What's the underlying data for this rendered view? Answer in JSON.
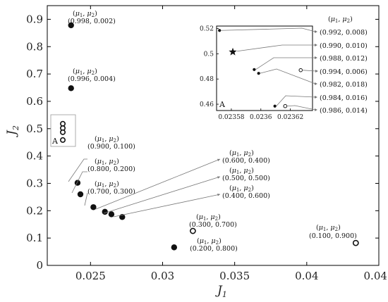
{
  "chart_data": {
    "type": "scatter",
    "xlabel": "J1",
    "ylabel": "J2",
    "xlim": [
      0.022,
      0.045
    ],
    "ylim": [
      0,
      0.95
    ],
    "xticks": [
      0.025,
      0.03,
      0.035,
      0.04,
      0.045
    ],
    "xtick_labels": [
      "0.025",
      "0.03",
      "0.035",
      "0.04",
      "0.045"
    ],
    "yticks": [
      0,
      0.1,
      0.2,
      0.3,
      0.4,
      0.5,
      0.6,
      0.7,
      0.8,
      0.9
    ],
    "ytick_labels": [
      "0",
      "0.1",
      "0.2",
      "0.3",
      "0.4",
      "0.5",
      "0.6",
      "0.7",
      "0.8",
      "0.9"
    ],
    "grid": false,
    "header_label": "(μ1, μ2)",
    "points": [
      {
        "x": 0.02365,
        "y": 0.878,
        "filled": true,
        "label": "(0.998, 0.002)"
      },
      {
        "x": 0.02365,
        "y": 0.648,
        "filled": true,
        "label": "(0.996, 0.004)"
      },
      {
        "x": 0.0241,
        "y": 0.302,
        "filled": true,
        "label": "(0.900, 0.100)"
      },
      {
        "x": 0.0243,
        "y": 0.26,
        "filled": true,
        "label": "(0.800, 0.200)"
      },
      {
        "x": 0.0252,
        "y": 0.213,
        "filled": true,
        "label": "(0.700, 0.300)"
      },
      {
        "x": 0.026,
        "y": 0.196,
        "filled": true,
        "label": "(0.600, 0.400)"
      },
      {
        "x": 0.02645,
        "y": 0.187,
        "filled": true,
        "label": "(0.500, 0.500)"
      },
      {
        "x": 0.0272,
        "y": 0.177,
        "filled": true,
        "label": "(0.400, 0.600)"
      },
      {
        "x": 0.0321,
        "y": 0.126,
        "filled": false,
        "label": "(0.300, 0.700)"
      },
      {
        "x": 0.0308,
        "y": 0.066,
        "filled": true,
        "label": "(0.200, 0.800)"
      },
      {
        "x": 0.0434,
        "y": 0.082,
        "filled": false,
        "label": "(0.100, 0.900)"
      }
    ],
    "box_label": "A",
    "inset": {
      "label": "A",
      "xlim": [
        0.02357,
        0.023635
      ],
      "ylim": [
        0.455,
        0.522
      ],
      "xticks": [
        0.02358,
        0.0236,
        0.02362
      ],
      "xtick_labels": [
        "0.02358",
        "0.0236",
        "0.02362"
      ],
      "yticks": [
        0.46,
        0.48,
        0.5,
        0.52
      ],
      "ytick_labels": [
        "0.46",
        "0.48",
        "0.5",
        "0.52"
      ],
      "points": [
        {
          "x": 0.023572,
          "y": 0.5185,
          "marker": "dot",
          "label": "(0.992, 0.008)"
        },
        {
          "x": 0.023581,
          "y": 0.5015,
          "marker": "star",
          "label": "(0.990, 0.010)"
        },
        {
          "x": 0.0235955,
          "y": 0.4875,
          "marker": "dot",
          "label": "(0.988, 0.012)"
        },
        {
          "x": 0.023627,
          "y": 0.487,
          "marker": "circle",
          "label": "(0.994, 0.006)"
        },
        {
          "x": 0.0235985,
          "y": 0.4845,
          "marker": "dot",
          "label": "(0.982, 0.018)"
        },
        {
          "x": 0.0236095,
          "y": 0.4585,
          "marker": "dot",
          "label": "(0.984, 0.016)"
        },
        {
          "x": 0.0236165,
          "y": 0.4585,
          "marker": "circle",
          "label": "(0.986, 0.014)"
        }
      ]
    }
  }
}
